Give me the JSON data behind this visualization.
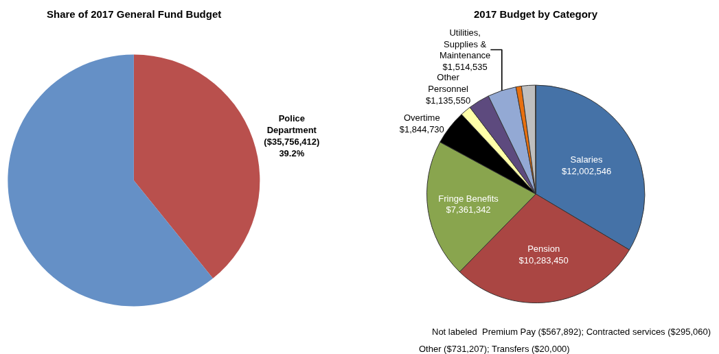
{
  "chart_data": [
    {
      "type": "pie",
      "title": "Share of 2017 General Fund Budget",
      "categories": [
        "Police Department ($35,756,412)",
        null
      ],
      "values": [
        39.2,
        60.8
      ],
      "value_labels": [
        "39.2%",
        null
      ],
      "colors": [
        "#b9504d",
        "#6590c6"
      ]
    },
    {
      "type": "pie",
      "title": "2017 Budget by Category",
      "categories": [
        "Salaries",
        "Pension",
        "Fringe Benefits",
        "Overtime",
        null,
        "Other Personnel",
        "Utilities, Supplies & Maintenance",
        null,
        null,
        null
      ],
      "values": [
        12002546,
        10283450,
        7361342,
        1844730,
        567892,
        1135550,
        1514535,
        295060,
        731207,
        20000
      ],
      "value_labels": [
        "$12,002,546",
        "$10,283,450",
        "$7,361,342",
        "$1,844,730",
        null,
        "$1,135,550",
        "$1,514,535",
        null,
        null,
        null
      ],
      "colors": [
        "#4572a7",
        "#aa4643",
        "#89a54e",
        "#000000",
        "#ffffa8",
        "#5d4a7e",
        "#93a9d4",
        "#e8700f",
        "#bfbfbf",
        "#d9d9d9"
      ],
      "annotations": [
        "Not labeled  Premium Pay ($567,892); Contracted services ($295,060)",
        "Other ($731,207); Transfers ($20,000)"
      ]
    }
  ]
}
